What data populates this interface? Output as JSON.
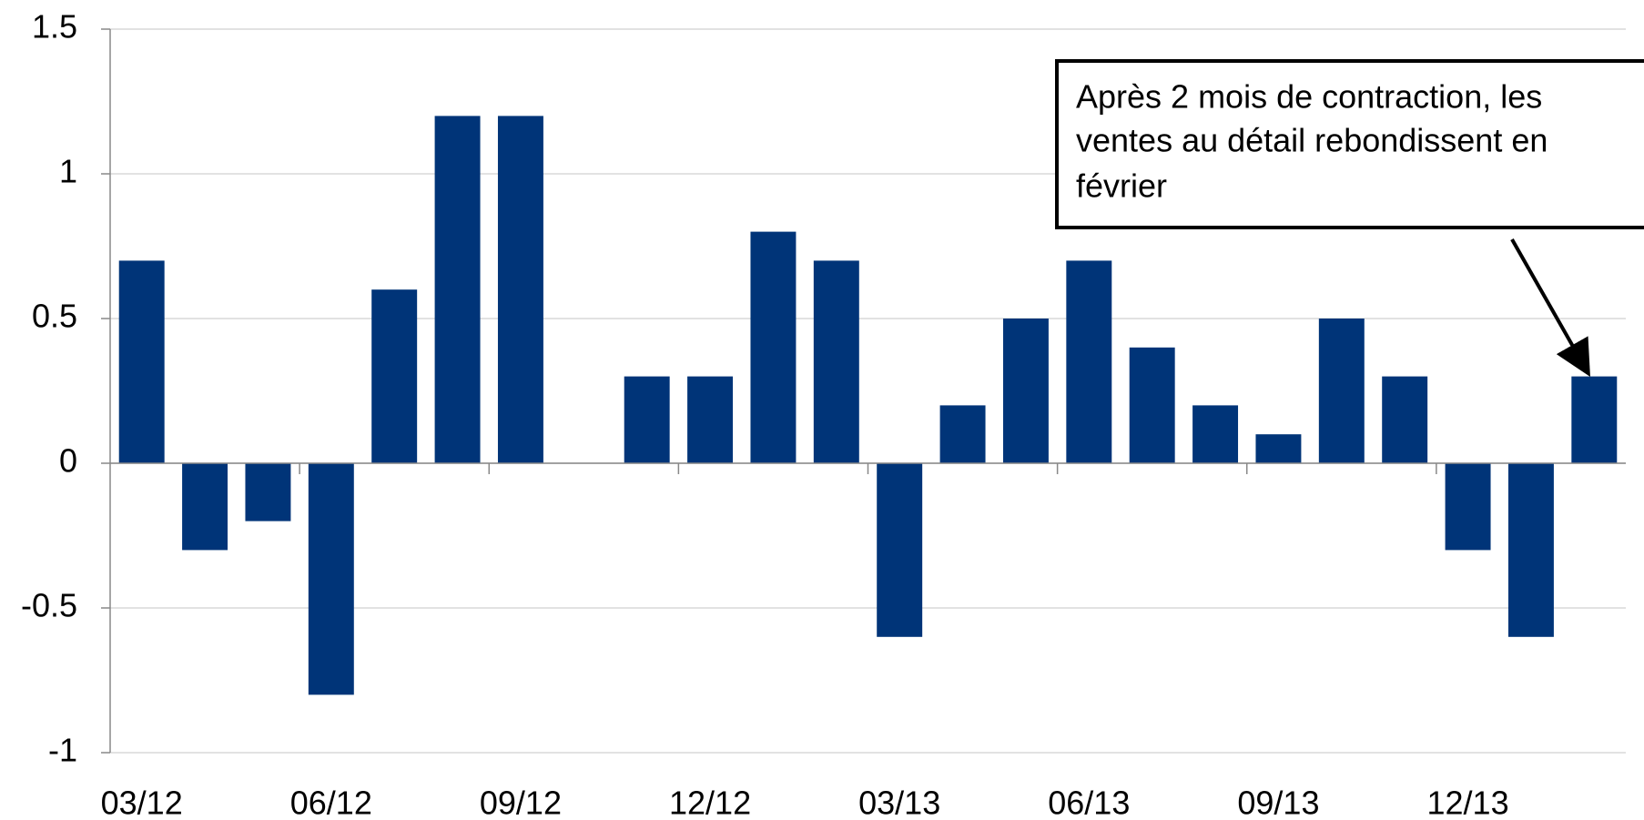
{
  "chart_data": {
    "type": "bar",
    "categories": [
      "03/12",
      null,
      null,
      "06/12",
      null,
      null,
      "09/12",
      null,
      null,
      "12/12",
      null,
      null,
      "03/13",
      null,
      null,
      "06/13",
      null,
      null,
      "09/13",
      null,
      null,
      "12/13",
      null,
      null
    ],
    "values": [
      0.7,
      -0.3,
      -0.2,
      -0.8,
      0.6,
      1.2,
      1.2,
      0,
      0.3,
      0.3,
      0.8,
      0.7,
      -0.6,
      0.2,
      0.5,
      0.7,
      0.4,
      0.2,
      0.1,
      0.5,
      0.3,
      -0.3,
      -0.6,
      0.3
    ],
    "color": "#003478",
    "ylim": [
      -1,
      1.5
    ],
    "yticks": [
      -1,
      -0.5,
      0,
      0.5,
      1,
      1.5
    ],
    "grid": true,
    "annotation": [
      "Après 2 mois de contraction, les",
      "ventes au détail rebondissent en",
      "février"
    ]
  }
}
